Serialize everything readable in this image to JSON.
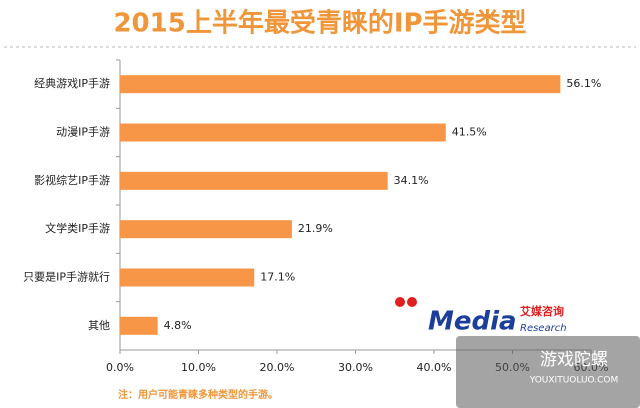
{
  "chart_data": {
    "type": "bar",
    "orientation": "horizontal",
    "title": "2015上半年最受青睐的IP手游类型",
    "categories": [
      "经典游戏IP手游",
      "动漫IP手游",
      "影视综艺IP手游",
      "文学类IP手游",
      "只要是IP手游就行",
      "其他"
    ],
    "values": [
      56.1,
      41.5,
      34.1,
      21.9,
      17.1,
      4.8
    ],
    "value_labels": [
      "56.1%",
      "41.5%",
      "34.1%",
      "21.9%",
      "17.1%",
      "4.8%"
    ],
    "color": "#f79646",
    "xlim": [
      0,
      60
    ],
    "xticks": [
      {
        "value": 0,
        "label": "0.0%"
      },
      {
        "value": 10,
        "label": "10.0%"
      },
      {
        "value": 20,
        "label": "20.0%"
      },
      {
        "value": 30,
        "label": "30.0%"
      },
      {
        "value": 40,
        "label": "40.0%"
      },
      {
        "value": 50,
        "label": "50.0%"
      },
      {
        "value": 60,
        "label": "60.0%"
      }
    ],
    "grid": false,
    "note": "注：用户可能青睐多种类型的手游。",
    "logo": {
      "brand": "Media",
      "cn": "艾媒咨询",
      "sub": "Research"
    },
    "watermark": {
      "cn": "游戏陀螺",
      "url": "YOUXITUOLUO.COM"
    }
  }
}
